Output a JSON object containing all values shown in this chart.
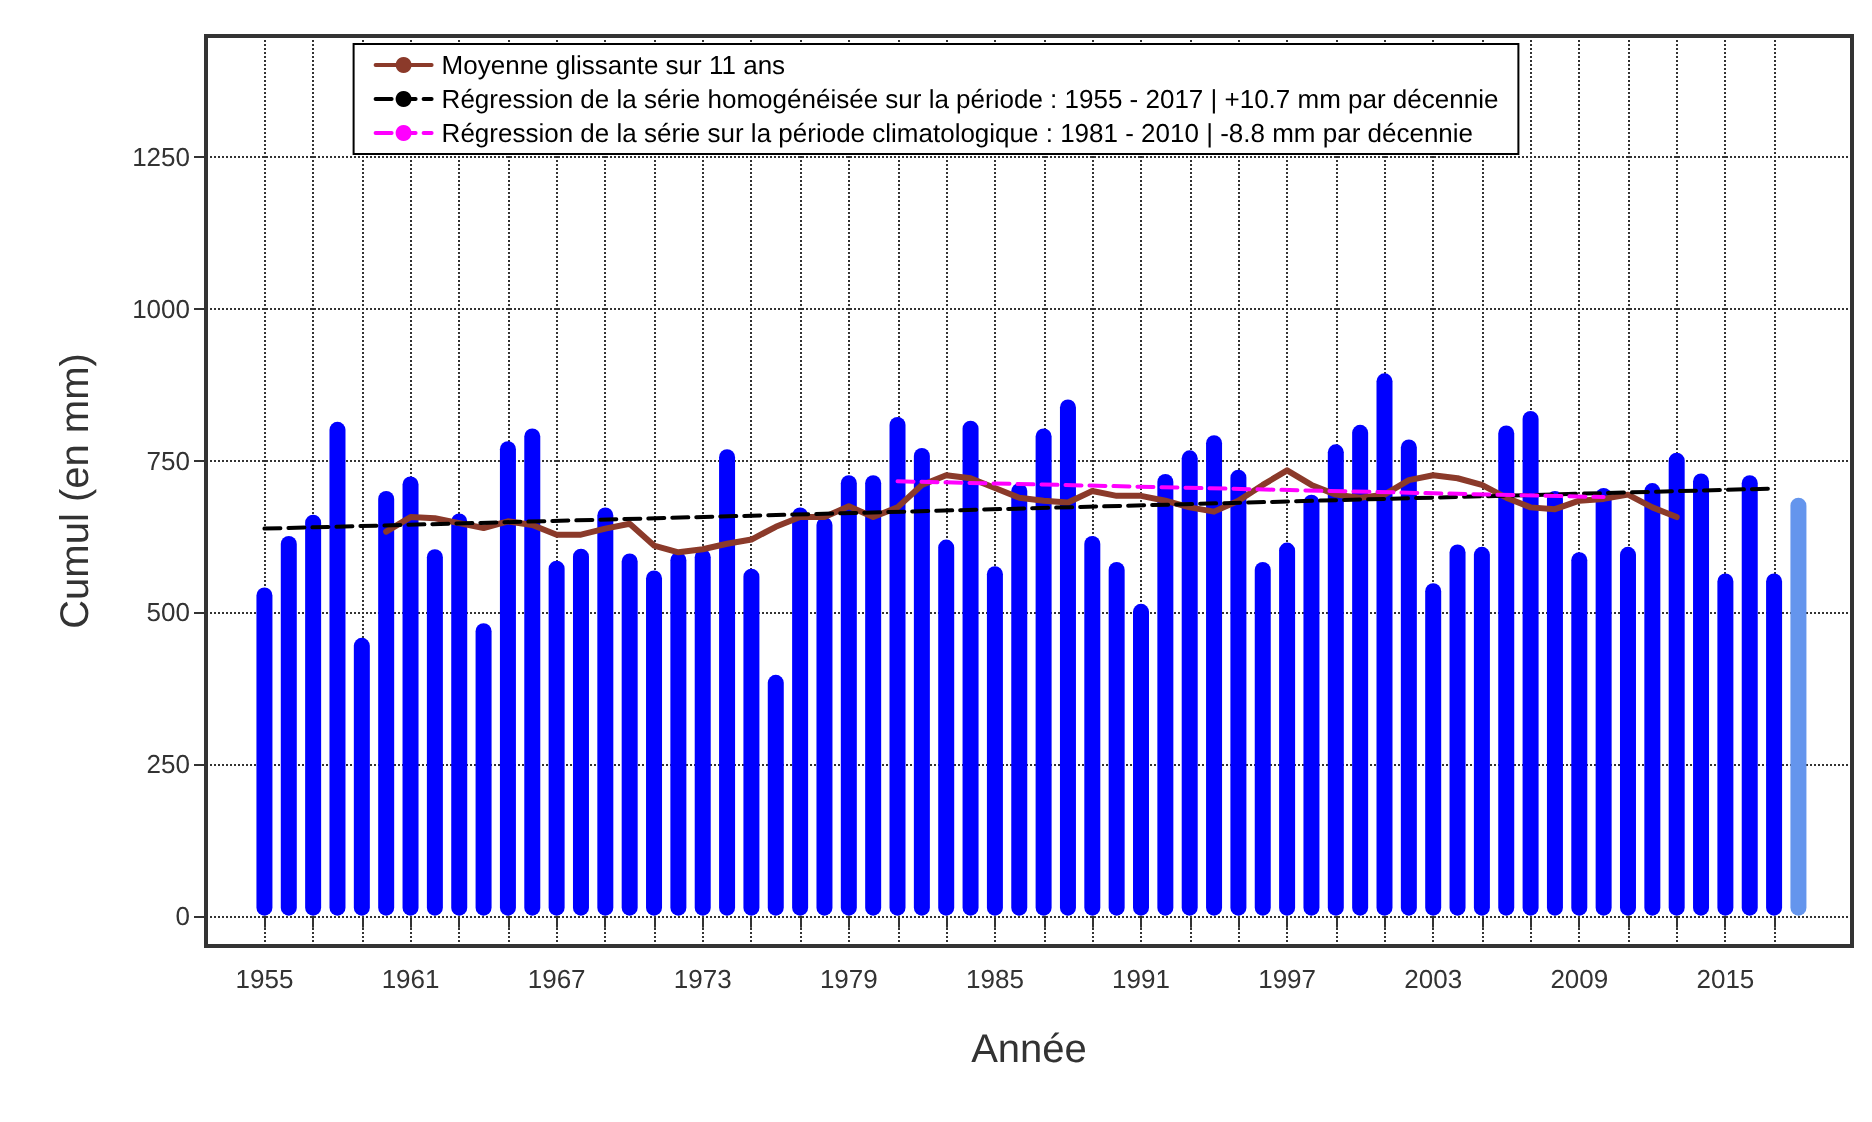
{
  "chart_data": {
    "type": "bar",
    "xlabel": "Année",
    "ylabel": "Cumul (en mm)",
    "x": [
      1955,
      1956,
      1957,
      1958,
      1959,
      1960,
      1961,
      1962,
      1963,
      1964,
      1965,
      1966,
      1967,
      1968,
      1969,
      1970,
      1971,
      1972,
      1973,
      1974,
      1975,
      1976,
      1977,
      1978,
      1979,
      1980,
      1981,
      1982,
      1983,
      1984,
      1985,
      1986,
      1987,
      1988,
      1989,
      1990,
      1991,
      1992,
      1993,
      1994,
      1995,
      1996,
      1997,
      1998,
      1999,
      2000,
      2001,
      2002,
      2003,
      2004,
      2005,
      2006,
      2007,
      2008,
      2009,
      2010,
      2011,
      2012,
      2013,
      2014,
      2015,
      2016,
      2017,
      2018
    ],
    "series": [
      {
        "values": [
          541,
          626,
          661,
          814,
          458,
          700,
          724,
          604,
          663,
          482,
          782,
          803,
          585,
          605,
          673,
          597,
          569,
          599,
          604,
          769,
          572,
          397,
          673,
          657,
          726,
          726,
          822,
          771,
          620,
          816,
          576,
          713,
          803,
          851,
          626,
          583,
          514,
          728,
          767,
          792,
          735,
          583,
          615,
          694,
          777,
          809,
          894,
          785,
          548,
          612,
          608,
          808,
          832,
          700,
          599,
          705,
          608,
          713,
          763,
          729,
          564,
          726,
          564,
          689
        ],
        "colors": [
          "#0000ff",
          "#0000ff",
          "#0000ff",
          "#0000ff",
          "#0000ff",
          "#0000ff",
          "#0000ff",
          "#0000ff",
          "#0000ff",
          "#0000ff",
          "#0000ff",
          "#0000ff",
          "#0000ff",
          "#0000ff",
          "#0000ff",
          "#0000ff",
          "#0000ff",
          "#0000ff",
          "#0000ff",
          "#0000ff",
          "#0000ff",
          "#0000ff",
          "#0000ff",
          "#0000ff",
          "#0000ff",
          "#0000ff",
          "#0000ff",
          "#0000ff",
          "#0000ff",
          "#0000ff",
          "#0000ff",
          "#0000ff",
          "#0000ff",
          "#0000ff",
          "#0000ff",
          "#0000ff",
          "#0000ff",
          "#0000ff",
          "#0000ff",
          "#0000ff",
          "#0000ff",
          "#0000ff",
          "#0000ff",
          "#0000ff",
          "#0000ff",
          "#0000ff",
          "#0000ff",
          "#0000ff",
          "#0000ff",
          "#0000ff",
          "#0000ff",
          "#0000ff",
          "#0000ff",
          "#0000ff",
          "#0000ff",
          "#0000ff",
          "#0000ff",
          "#0000ff",
          "#0000ff",
          "#0000ff",
          "#0000ff",
          "#0000ff",
          "#0000ff",
          "#6495ed"
        ]
      },
      {
        "type": "line",
        "name": "Moyenne glissante sur 11 ans",
        "color": "#8b3a2a",
        "line_style": "solid",
        "x": [
          1960,
          1961,
          1962,
          1963,
          1964,
          1965,
          1966,
          1967,
          1968,
          1969,
          1970,
          1971,
          1972,
          1973,
          1974,
          1975,
          1976,
          1977,
          1978,
          1979,
          1980,
          1981,
          1982,
          1983,
          1984,
          1985,
          1986,
          1987,
          1988,
          1989,
          1990,
          1991,
          1992,
          1993,
          1994,
          1995,
          1996,
          1997,
          1998,
          1999,
          2000,
          2001,
          2002,
          2003,
          2004,
          2005,
          2006,
          2007,
          2008,
          2009,
          2010,
          2011,
          2012,
          2013
        ],
        "values": [
          633,
          657,
          655,
          647,
          639,
          650,
          644,
          628,
          628,
          638,
          646,
          610,
          599,
          604,
          613,
          620,
          641,
          657,
          657,
          675,
          657,
          673,
          710,
          726,
          721,
          705,
          689,
          684,
          681,
          700,
          692,
          692,
          684,
          673,
          666,
          684,
          710,
          734,
          710,
          694,
          689,
          694,
          718,
          726,
          721,
          710,
          689,
          673,
          670,
          684,
          687,
          694,
          673,
          657
        ]
      },
      {
        "type": "line",
        "name": "Régression de la série homogénéisée sur la période : 1955 - 2017 | +10.7 mm par décennie",
        "color": "#000000",
        "line_style": "dashed",
        "x": [
          1955,
          2017
        ],
        "values": [
          638,
          704
        ]
      },
      {
        "type": "line",
        "name": "Régression de la série sur la période climatologique : 1981 - 2010 | -8.8 mm par décennie",
        "color": "#ff00ff",
        "line_style": "dashed",
        "x": [
          1981,
          2010
        ],
        "values": [
          716,
          690
        ]
      }
    ],
    "xlim": [
      1952.6,
      2020.2
    ],
    "xticks": [
      1955,
      {
        "value": 1957,
        "label": null
      },
      {
        "value": 1959,
        "label": null
      },
      1961,
      {
        "value": 1963,
        "label": null
      },
      {
        "value": 1965,
        "label": null
      },
      1967,
      {
        "value": 1969,
        "label": null
      },
      {
        "value": 1971,
        "label": null
      },
      1973,
      {
        "value": 1975,
        "label": null
      },
      {
        "value": 1977,
        "label": null
      },
      1979,
      {
        "value": 1981,
        "label": null
      },
      {
        "value": 1983,
        "label": null
      },
      1985,
      {
        "value": 1987,
        "label": null
      },
      {
        "value": 1989,
        "label": null
      },
      1991,
      {
        "value": 1993,
        "label": null
      },
      {
        "value": 1995,
        "label": null
      },
      1997,
      {
        "value": 1999,
        "label": null
      },
      {
        "value": 2001,
        "label": null
      },
      2003,
      {
        "value": 2005,
        "label": null
      },
      {
        "value": 2007,
        "label": null
      },
      2009,
      {
        "value": 2011,
        "label": null
      },
      {
        "value": 2013,
        "label": null
      },
      2015,
      {
        "value": 2017,
        "label": null
      }
    ],
    "ylim": [
      -50,
      1450
    ],
    "yticks": [
      0,
      250,
      500,
      750,
      1000,
      1250
    ],
    "grid": true,
    "legend": "top",
    "marker": "none"
  }
}
